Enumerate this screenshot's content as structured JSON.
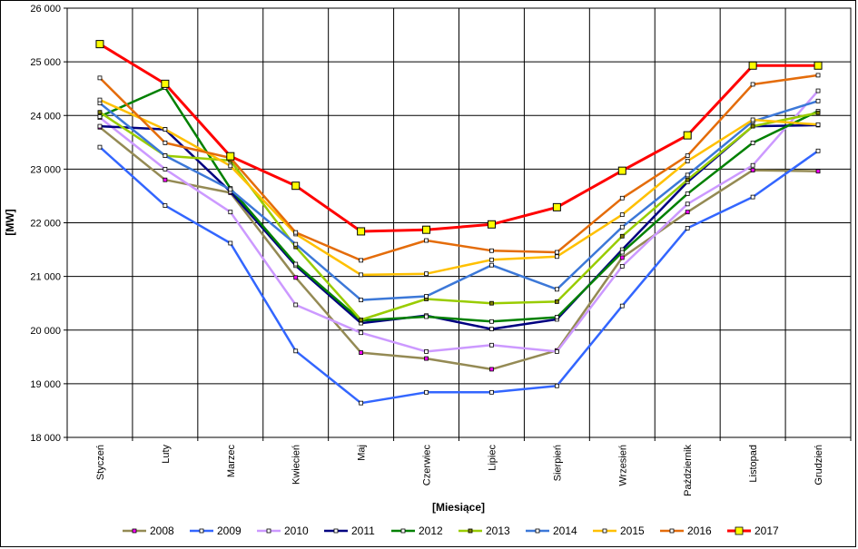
{
  "chart_data": {
    "type": "line",
    "xlabel": "[Miesiące]",
    "ylabel": "[MW]",
    "ylim": [
      18000,
      26000
    ],
    "ytick_step": 1000,
    "ytick_labels": [
      "18 000",
      "19 000",
      "20 000",
      "21 000",
      "22 000",
      "23 000",
      "24 000",
      "25 000",
      "26 000"
    ],
    "categories": [
      "Styczeń",
      "Luty",
      "Marzec",
      "Kwiecień",
      "Maj",
      "Czerwiec",
      "Lipiec",
      "Sierpień",
      "Wrzesień",
      "Październik",
      "Listopad",
      "Grudzień"
    ],
    "grid": true,
    "legend_position": "bottom",
    "series": [
      {
        "name": "2008",
        "color": "#948A54",
        "marker_fill": "#FF00FF",
        "values": [
          23780,
          22800,
          22560,
          20980,
          19580,
          19470,
          19270,
          19620,
          21350,
          22200,
          22980,
          22960
        ]
      },
      {
        "name": "2009",
        "color": "#3366FF",
        "marker_fill": "#FFFFFF",
        "values": [
          23410,
          22320,
          21620,
          19610,
          18640,
          18840,
          18840,
          18960,
          20450,
          21900,
          22480,
          23340
        ]
      },
      {
        "name": "2010",
        "color": "#CC99FF",
        "marker_fill": "#FFFFFF",
        "values": [
          23960,
          23000,
          22200,
          20470,
          19950,
          19600,
          19720,
          19600,
          21190,
          22350,
          23070,
          24460
        ]
      },
      {
        "name": "2011",
        "color": "#000080",
        "marker_fill": "#FFFFFF",
        "values": [
          23800,
          23740,
          22580,
          21200,
          20130,
          20270,
          20020,
          20200,
          21500,
          22760,
          23800,
          23820
        ]
      },
      {
        "name": "2012",
        "color": "#008000",
        "marker_fill": "#FFFFFF",
        "values": [
          23980,
          24520,
          22640,
          21230,
          20180,
          20250,
          20160,
          20240,
          21450,
          22540,
          23490,
          24080
        ]
      },
      {
        "name": "2013",
        "color": "#99CC00",
        "marker_fill": "#808000",
        "values": [
          24060,
          23250,
          23160,
          21550,
          20190,
          20580,
          20500,
          20530,
          21750,
          22800,
          23800,
          24050
        ]
      },
      {
        "name": "2014",
        "color": "#3C78D8",
        "marker_fill": "#FFFFFF",
        "values": [
          24230,
          23250,
          22620,
          21600,
          20560,
          20630,
          21210,
          20760,
          21920,
          22890,
          23890,
          24270
        ]
      },
      {
        "name": "2015",
        "color": "#FFC000",
        "marker_fill": "#FFFFFF",
        "values": [
          24290,
          23740,
          23060,
          21790,
          21030,
          21050,
          21310,
          21370,
          22150,
          23150,
          23920,
          23830
        ]
      },
      {
        "name": "2016",
        "color": "#E46C0A",
        "marker_fill": "#FFFFFF",
        "values": [
          24700,
          23490,
          23210,
          21820,
          21300,
          21670,
          21480,
          21450,
          22460,
          23250,
          24580,
          24750
        ]
      },
      {
        "name": "2017",
        "color": "#FF0000",
        "marker_fill": "#FFFF00",
        "values": [
          25330,
          24590,
          23240,
          22690,
          21840,
          21870,
          21970,
          22290,
          22970,
          23630,
          24930,
          24930
        ]
      }
    ]
  }
}
